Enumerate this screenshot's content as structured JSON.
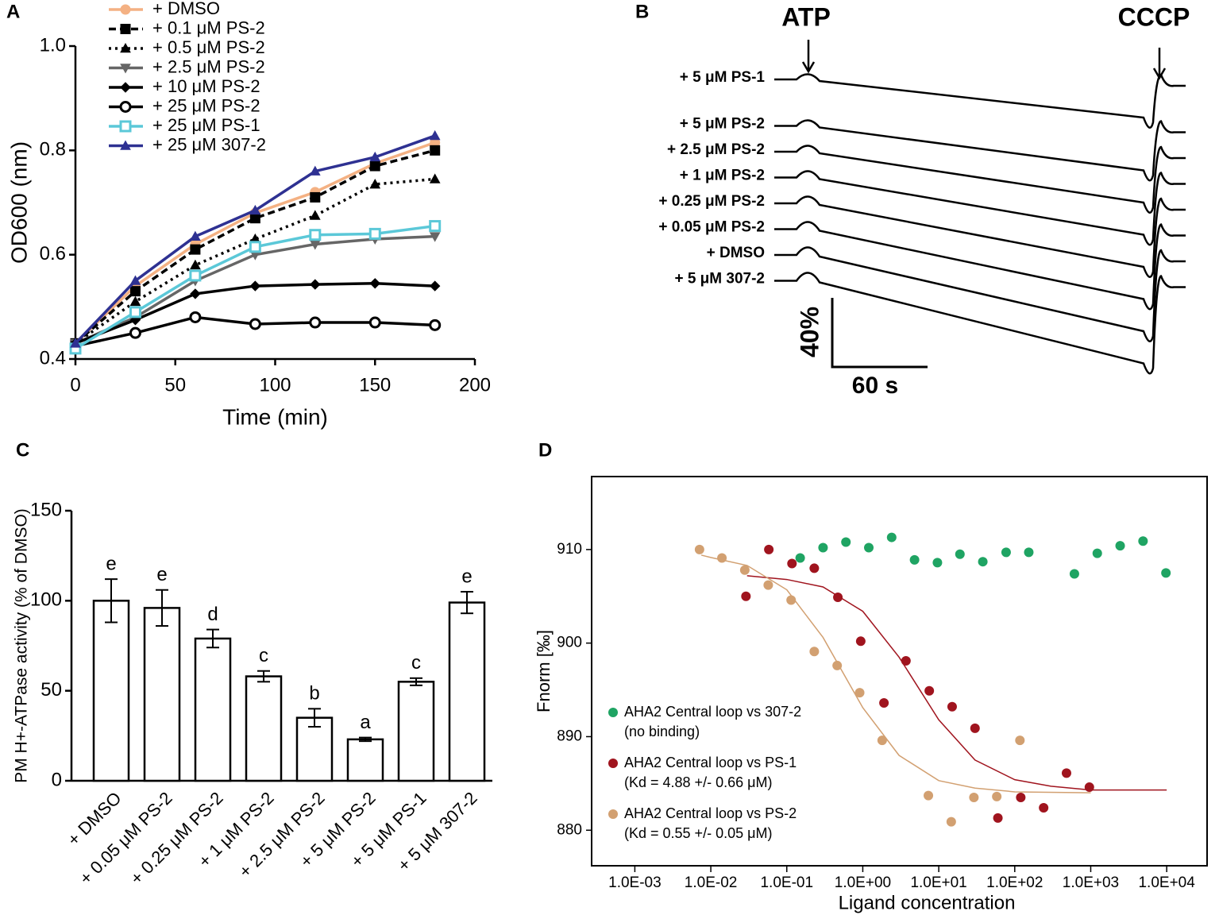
{
  "chart_data": [
    {
      "type": "line",
      "panel": "A",
      "x_label": "Time (min)",
      "y_label": "OD600 (nm)",
      "x": [
        0,
        30,
        60,
        90,
        120,
        150,
        180
      ],
      "xlim": [
        0,
        200
      ],
      "xticks": [
        0,
        50,
        100,
        150,
        200
      ],
      "ylim": [
        0.4,
        1.0
      ],
      "yticks": [
        0.4,
        0.6,
        0.8,
        {
          "value": 1,
          "label": "1.0"
        }
      ],
      "series": [
        {
          "name": "+ DMSO",
          "color": "#f4b183",
          "dash": "solid",
          "marker": "circle",
          "values": [
            0.43,
            0.54,
            0.62,
            0.68,
            0.72,
            0.775,
            0.815
          ]
        },
        {
          "name": "+ 0.1 μM PS-2",
          "color": "#000000",
          "dash": "dashed",
          "marker": "square",
          "values": [
            0.43,
            0.53,
            0.61,
            0.67,
            0.71,
            0.77,
            0.8
          ]
        },
        {
          "name": "+ 0.5 μM PS-2",
          "color": "#000000",
          "dash": "dotted",
          "marker": "triangle",
          "values": [
            0.43,
            0.51,
            0.58,
            0.63,
            0.675,
            0.735,
            0.745
          ]
        },
        {
          "name": "+ 2.5 μM PS-2",
          "color": "#666666",
          "dash": "solid",
          "marker": "triangle-down",
          "values": [
            0.43,
            0.48,
            0.55,
            0.6,
            0.62,
            0.63,
            0.635
          ]
        },
        {
          "name": "+ 10 μM PS-2",
          "color": "#000000",
          "dash": "solid",
          "marker": "diamond",
          "values": [
            0.43,
            0.475,
            0.525,
            0.54,
            0.543,
            0.545,
            0.54
          ]
        },
        {
          "name": "+ 25 μM PS-2",
          "color": "#000000",
          "dash": "solid",
          "marker": "open-circle",
          "values": [
            0.425,
            0.45,
            0.48,
            0.467,
            0.47,
            0.47,
            0.465
          ]
        },
        {
          "name": "+ 25 μM PS-1",
          "color": "#5bc8d8",
          "dash": "solid",
          "marker": "open-square",
          "values": [
            0.42,
            0.49,
            0.56,
            0.615,
            0.638,
            0.64,
            0.655
          ]
        },
        {
          "name": "+ 25 μM 307-2",
          "color": "#2e3192",
          "dash": "solid",
          "marker": "triangle",
          "values": [
            0.43,
            0.55,
            0.635,
            0.685,
            0.76,
            0.787,
            0.828
          ]
        }
      ]
    },
    {
      "type": "traces",
      "panel": "B",
      "atp": "ATP",
      "cccp": "CCCP",
      "scale_y": "40%",
      "scale_x": "60 s",
      "labels": [
        "+ 5 μM PS-1",
        "+ 5 μM PS-2",
        "+ 2.5 μM PS-2",
        "+ 1 μM PS-2",
        "+ 0.25 μM PS-2",
        "+ 0.05 μM PS-2",
        "+ DMSO",
        "+ 5 μM 307-2"
      ]
    },
    {
      "type": "bar",
      "panel": "C",
      "y_label": "PM H+-ATPase activity (% of DMSO)",
      "categories": [
        "+ DMSO",
        "+ 0.05 μM PS-2",
        "+ 0.25 μM PS-2",
        "+ 1 μM PS-2",
        "+ 2.5 μM PS-2",
        "+ 5 μM PS-2",
        "+ 5 μM PS-1",
        "+ 5 μM 307-2"
      ],
      "values": [
        100,
        96,
        79,
        58,
        35,
        23,
        55,
        99
      ],
      "errors": [
        12,
        10,
        5,
        3,
        5,
        1,
        2,
        6
      ],
      "letters": [
        "e",
        "e",
        "d",
        "c",
        "b",
        "a",
        "c",
        "e"
      ],
      "color": "#ffffff",
      "ylim": [
        0,
        150
      ],
      "yticks": [
        0,
        50,
        100,
        150
      ]
    },
    {
      "type": "scatter",
      "panel": "D",
      "x_label": "Ligand concentration",
      "y_label": "Fnorm [‰]",
      "log_x": true,
      "xlim": [
        0.00027,
        34000
      ],
      "xticks": [
        {
          "value": 0.001,
          "label": "1.0E-03"
        },
        {
          "value": 0.01,
          "label": "1.0E-02"
        },
        {
          "value": 0.1,
          "label": "1.0E-01"
        },
        {
          "value": 1,
          "label": "1.0E+00"
        },
        {
          "value": 10,
          "label": "1.0E+01"
        },
        {
          "value": 100,
          "label": "1.0E+02"
        },
        {
          "value": 1000,
          "label": "1.0E+03"
        },
        {
          "value": 10000,
          "label": "1.0E+04"
        }
      ],
      "ylim": [
        876.2,
        917.8
      ],
      "yticks": [
        880,
        890,
        900,
        910
      ],
      "series": [
        {
          "name": "AHA2 Central loop vs 307-2",
          "note": "(no binding)",
          "color": "#1fa463",
          "x": [
            0.15,
            0.3,
            0.6,
            1.2,
            2.4,
            4.8,
            9.6,
            19,
            38,
            77,
            153,
            610,
            1220,
            2440,
            4880,
            9770
          ],
          "values": [
            909.1,
            910.2,
            910.8,
            910.2,
            911.3,
            908.9,
            908.6,
            909.5,
            908.7,
            909.7,
            909.7,
            907.4,
            909.6,
            910.4,
            910.9,
            907.5
          ]
        },
        {
          "name": "AHA2 Central loop vs PS-1",
          "note": "(Kd = 4.88 +/- 0.66 μM)",
          "color": "#a0141e",
          "x": [
            0.029,
            0.058,
            0.117,
            0.23,
            0.47,
            0.94,
            1.9,
            3.7,
            7.5,
            15,
            30,
            60,
            120,
            240,
            480,
            960
          ],
          "values": [
            905,
            910,
            908.5,
            908,
            904.9,
            900.2,
            893.6,
            898.1,
            894.9,
            893.2,
            890.9,
            881.3,
            883.5,
            882.4,
            886.1,
            884.6
          ],
          "fit_x": [
            0.03,
            0.1,
            0.3,
            1,
            3,
            10,
            30,
            100,
            300,
            1000,
            10000
          ],
          "fit_values": [
            907.2,
            906.8,
            906,
            903.4,
            898.5,
            891.8,
            887.5,
            885.4,
            884.7,
            884.3,
            884.3
          ]
        },
        {
          "name": "AHA2 Central loop vs PS-2",
          "note": "(Kd = 0.55 +/- 0.05 μM)",
          "color": "#d2a071",
          "x": [
            0.0071,
            0.014,
            0.028,
            0.057,
            0.114,
            0.23,
            0.46,
            0.91,
            1.8,
            7.3,
            14.6,
            29,
            58,
            117
          ],
          "values": [
            910,
            909.1,
            907.8,
            906.2,
            904.6,
            899.1,
            897.6,
            894.7,
            889.6,
            883.7,
            880.9,
            883.5,
            883.6,
            889.6
          ],
          "fit_x": [
            0.0075,
            0.01,
            0.03,
            0.1,
            0.3,
            1,
            3,
            10,
            30,
            100,
            1000
          ],
          "fit_values": [
            909.4,
            909.15,
            908.3,
            905.7,
            900.6,
            893.1,
            888,
            885.3,
            884.5,
            884.1,
            884
          ]
        }
      ]
    }
  ]
}
